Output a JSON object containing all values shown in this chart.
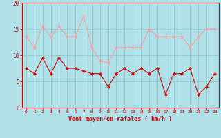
{
  "x": [
    0,
    1,
    2,
    3,
    4,
    5,
    6,
    7,
    8,
    9,
    10,
    11,
    12,
    13,
    14,
    15,
    16,
    17,
    18,
    19,
    20,
    21,
    22,
    23
  ],
  "rafales": [
    13.5,
    11.5,
    15.5,
    13.5,
    15.5,
    13.5,
    13.5,
    17.5,
    11.5,
    9.0,
    8.5,
    11.5,
    11.5,
    11.5,
    11.5,
    15.0,
    13.5,
    13.5,
    13.5,
    13.5,
    11.5,
    13.5,
    15.0,
    15.0
  ],
  "moyen": [
    7.5,
    6.5,
    9.5,
    6.5,
    9.5,
    7.5,
    7.5,
    7.0,
    6.5,
    6.5,
    4.0,
    6.5,
    7.5,
    6.5,
    7.5,
    6.5,
    7.5,
    2.5,
    6.5,
    6.5,
    7.5,
    2.5,
    4.0,
    6.5
  ],
  "rafales_color": "#f4a0a0",
  "moyen_color": "#cc0000",
  "bg_color": "#b0e0e8",
  "grid_color": "#90c8d0",
  "xlabel": "Vent moyen/en rafales ( km/h )",
  "xlabel_color": "#cc0000",
  "tick_color": "#cc0000",
  "ylim": [
    0,
    20
  ],
  "yticks": [
    0,
    5,
    10,
    15,
    20
  ],
  "xlim": [
    -0.5,
    23.5
  ],
  "marker": "D",
  "markersize": 2.0,
  "linewidth": 0.8
}
